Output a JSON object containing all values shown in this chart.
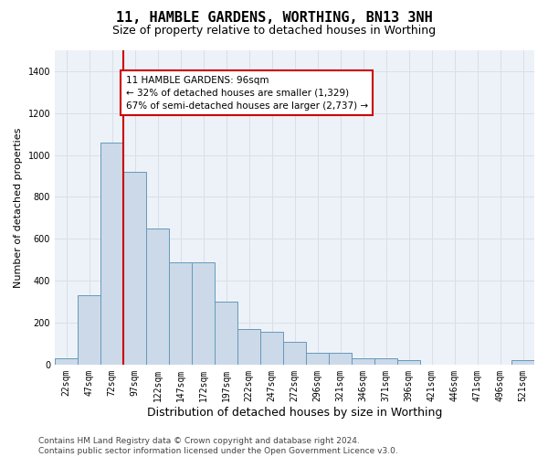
{
  "title": "11, HAMBLE GARDENS, WORTHING, BN13 3NH",
  "subtitle": "Size of property relative to detached houses in Worthing",
  "xlabel": "Distribution of detached houses by size in Worthing",
  "ylabel": "Number of detached properties",
  "bar_labels": [
    "22sqm",
    "47sqm",
    "72sqm",
    "97sqm",
    "122sqm",
    "147sqm",
    "172sqm",
    "197sqm",
    "222sqm",
    "247sqm",
    "272sqm",
    "296sqm",
    "321sqm",
    "346sqm",
    "371sqm",
    "396sqm",
    "421sqm",
    "446sqm",
    "471sqm",
    "496sqm",
    "521sqm"
  ],
  "bar_values": [
    30,
    330,
    1060,
    920,
    650,
    490,
    490,
    300,
    170,
    155,
    110,
    55,
    55,
    30,
    30,
    20,
    0,
    0,
    0,
    0,
    20
  ],
  "bar_color": "#ccd9e8",
  "bar_edge_color": "#6699bb",
  "grid_color": "#d8dfe8",
  "bg_color": "#edf2f8",
  "vline_color": "#cc0000",
  "vline_x_index": 2.5,
  "annotation_text": "11 HAMBLE GARDENS: 96sqm\n← 32% of detached houses are smaller (1,329)\n67% of semi-detached houses are larger (2,737) →",
  "annotation_box_facecolor": "#ffffff",
  "annotation_box_edgecolor": "#cc0000",
  "ylim": [
    0,
    1500
  ],
  "yticks": [
    0,
    200,
    400,
    600,
    800,
    1000,
    1200,
    1400
  ],
  "footer": "Contains HM Land Registry data © Crown copyright and database right 2024.\nContains public sector information licensed under the Open Government Licence v3.0.",
  "title_fontsize": 11,
  "subtitle_fontsize": 9,
  "xlabel_fontsize": 9,
  "ylabel_fontsize": 8,
  "tick_fontsize": 7,
  "annotation_fontsize": 7.5,
  "footer_fontsize": 6.5
}
